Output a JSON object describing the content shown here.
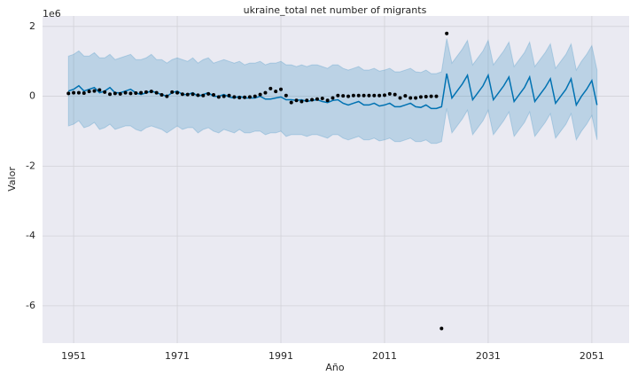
{
  "chart_data": {
    "type": "line",
    "title": "ukraine_total net number of migrants",
    "xlabel": "Año",
    "ylabel": "Valor",
    "y_offset_label": "1e6",
    "xlim": [
      1945,
      2058.2
    ],
    "xticks": [
      1951,
      1971,
      1991,
      2011,
      2031,
      2051
    ],
    "ylim": [
      -7.07,
      2.3
    ],
    "yticks": [
      -6,
      -4,
      -2,
      0,
      2
    ],
    "grid": true,
    "forecast": {
      "color": "#0072b2",
      "x": [
        1950,
        1951,
        1952,
        1953,
        1954,
        1955,
        1956,
        1957,
        1958,
        1959,
        1960,
        1961,
        1962,
        1963,
        1964,
        1965,
        1966,
        1967,
        1968,
        1969,
        1970,
        1971,
        1972,
        1973,
        1974,
        1975,
        1976,
        1977,
        1978,
        1979,
        1980,
        1981,
        1982,
        1983,
        1984,
        1985,
        1986,
        1987,
        1988,
        1989,
        1990,
        1991,
        1992,
        1993,
        1994,
        1995,
        1996,
        1997,
        1998,
        1999,
        2000,
        2001,
        2002,
        2003,
        2004,
        2005,
        2006,
        2007,
        2008,
        2009,
        2010,
        2011,
        2012,
        2013,
        2014,
        2015,
        2016,
        2017,
        2018,
        2019,
        2020,
        2021,
        2022,
        2023,
        2024,
        2025,
        2026,
        2027,
        2028,
        2029,
        2030,
        2031,
        2032,
        2033,
        2034,
        2035,
        2036,
        2037,
        2038,
        2039,
        2040,
        2041,
        2042,
        2043,
        2044,
        2045,
        2046,
        2047,
        2048,
        2049,
        2050,
        2051,
        2052
      ],
      "values": [
        0.15,
        0.2,
        0.3,
        0.15,
        0.2,
        0.25,
        0.1,
        0.15,
        0.25,
        0.1,
        0.1,
        0.15,
        0.2,
        0.1,
        0.05,
        0.1,
        0.15,
        0.1,
        0.05,
        0.0,
        0.1,
        0.15,
        0.05,
        0.05,
        0.1,
        0.0,
        0.05,
        0.1,
        0.0,
        0.0,
        0.05,
        -0.02,
        -0.05,
        0.0,
        -0.05,
        -0.05,
        -0.05,
        0.0,
        -0.08,
        -0.08,
        -0.05,
        -0.02,
        -0.1,
        -0.1,
        -0.12,
        -0.1,
        -0.15,
        -0.12,
        -0.1,
        -0.15,
        -0.18,
        -0.12,
        -0.1,
        -0.2,
        -0.25,
        -0.2,
        -0.15,
        -0.25,
        -0.25,
        -0.2,
        -0.28,
        -0.25,
        -0.2,
        -0.3,
        -0.3,
        -0.25,
        -0.2,
        -0.3,
        -0.32,
        -0.25,
        -0.35,
        -0.35,
        -0.3,
        0.65,
        -0.05,
        0.15,
        0.35,
        0.6,
        -0.1,
        0.1,
        0.3,
        0.6,
        -0.1,
        0.1,
        0.3,
        0.55,
        -0.15,
        0.05,
        0.25,
        0.55,
        -0.15,
        0.05,
        0.25,
        0.5,
        -0.2,
        0.0,
        0.2,
        0.5,
        -0.25,
        0.0,
        0.2,
        0.45,
        -0.25
      ],
      "upper": [
        1.15,
        1.2,
        1.3,
        1.15,
        1.15,
        1.25,
        1.1,
        1.1,
        1.2,
        1.05,
        1.1,
        1.15,
        1.2,
        1.05,
        1.05,
        1.1,
        1.2,
        1.05,
        1.05,
        0.95,
        1.05,
        1.1,
        1.05,
        1.0,
        1.1,
        0.95,
        1.05,
        1.1,
        0.95,
        1.0,
        1.05,
        1.0,
        0.95,
        1.0,
        0.9,
        0.95,
        0.95,
        1.0,
        0.9,
        0.95,
        0.95,
        1.0,
        0.9,
        0.9,
        0.85,
        0.9,
        0.85,
        0.9,
        0.9,
        0.85,
        0.8,
        0.9,
        0.9,
        0.8,
        0.75,
        0.8,
        0.85,
        0.75,
        0.75,
        0.8,
        0.72,
        0.75,
        0.8,
        0.7,
        0.7,
        0.75,
        0.8,
        0.7,
        0.68,
        0.75,
        0.65,
        0.65,
        0.7,
        1.65,
        0.95,
        1.15,
        1.35,
        1.6,
        0.9,
        1.1,
        1.3,
        1.6,
        0.9,
        1.1,
        1.3,
        1.55,
        0.85,
        1.05,
        1.25,
        1.55,
        0.85,
        1.05,
        1.25,
        1.5,
        0.8,
        1.0,
        1.2,
        1.5,
        0.75,
        1.0,
        1.2,
        1.45,
        0.75
      ],
      "lower": [
        -0.85,
        -0.8,
        -0.7,
        -0.9,
        -0.85,
        -0.75,
        -0.95,
        -0.9,
        -0.8,
        -0.95,
        -0.9,
        -0.85,
        -0.85,
        -0.95,
        -1.0,
        -0.9,
        -0.85,
        -0.9,
        -0.95,
        -1.05,
        -0.95,
        -0.85,
        -0.95,
        -0.9,
        -0.9,
        -1.05,
        -0.95,
        -0.9,
        -1.0,
        -1.05,
        -0.95,
        -1.0,
        -1.05,
        -0.95,
        -1.05,
        -1.05,
        -1.0,
        -1.0,
        -1.1,
        -1.05,
        -1.05,
        -1.0,
        -1.15,
        -1.1,
        -1.1,
        -1.1,
        -1.15,
        -1.1,
        -1.1,
        -1.15,
        -1.2,
        -1.1,
        -1.1,
        -1.2,
        -1.25,
        -1.2,
        -1.15,
        -1.25,
        -1.25,
        -1.2,
        -1.28,
        -1.25,
        -1.2,
        -1.3,
        -1.3,
        -1.25,
        -1.2,
        -1.3,
        -1.3,
        -1.25,
        -1.35,
        -1.35,
        -1.3,
        -0.35,
        -1.05,
        -0.85,
        -0.65,
        -0.4,
        -1.1,
        -0.9,
        -0.7,
        -0.4,
        -1.1,
        -0.9,
        -0.7,
        -0.45,
        -1.15,
        -0.95,
        -0.75,
        -0.45,
        -1.15,
        -0.95,
        -0.75,
        -0.5,
        -1.2,
        -1.0,
        -0.8,
        -0.5,
        -1.25,
        -1.0,
        -0.8,
        -0.55,
        -1.25
      ]
    },
    "observed": {
      "color": "#000000",
      "x": [
        1950,
        1951,
        1952,
        1953,
        1954,
        1955,
        1956,
        1957,
        1958,
        1959,
        1960,
        1961,
        1962,
        1963,
        1964,
        1965,
        1966,
        1967,
        1968,
        1969,
        1970,
        1971,
        1972,
        1973,
        1974,
        1975,
        1976,
        1977,
        1978,
        1979,
        1980,
        1981,
        1982,
        1983,
        1984,
        1985,
        1986,
        1987,
        1988,
        1989,
        1990,
        1991,
        1992,
        1993,
        1994,
        1995,
        1996,
        1997,
        1998,
        1999,
        2000,
        2001,
        2002,
        2003,
        2004,
        2005,
        2006,
        2007,
        2008,
        2009,
        2010,
        2011,
        2012,
        2013,
        2014,
        2015,
        2016,
        2017,
        2018,
        2019,
        2020,
        2021,
        2022,
        2023
      ],
      "values": [
        0.08,
        0.1,
        0.1,
        0.09,
        0.14,
        0.15,
        0.18,
        0.12,
        0.06,
        0.08,
        0.07,
        0.1,
        0.08,
        0.09,
        0.1,
        0.12,
        0.14,
        0.1,
        0.04,
        0.0,
        0.12,
        0.1,
        0.06,
        0.05,
        0.06,
        0.03,
        0.02,
        0.07,
        0.04,
        -0.02,
        0.0,
        0.02,
        -0.02,
        -0.04,
        -0.03,
        -0.02,
        0.0,
        0.05,
        0.1,
        0.22,
        0.14,
        0.2,
        0.02,
        -0.18,
        -0.12,
        -0.15,
        -0.12,
        -0.1,
        -0.08,
        -0.06,
        -0.12,
        -0.05,
        0.02,
        0.01,
        0.0,
        0.02,
        0.02,
        0.02,
        0.02,
        0.02,
        0.02,
        0.03,
        0.07,
        0.05,
        -0.05,
        0.01,
        -0.05,
        -0.05,
        -0.02,
        -0.01,
        0.0,
        0.0,
        -6.65,
        1.8
      ]
    }
  }
}
